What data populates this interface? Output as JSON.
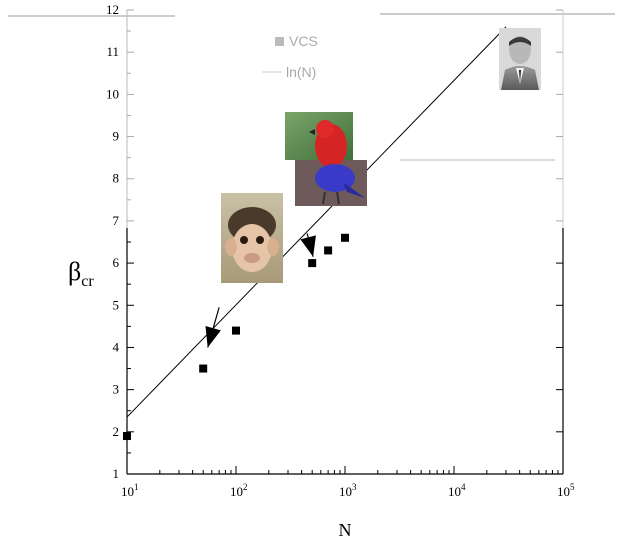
{
  "chart_data": {
    "type": "scatter",
    "xlabel": "N",
    "ylabel": "β",
    "ylabel_subscript": "cr",
    "x_scale": "log",
    "xlim": [
      10,
      100000
    ],
    "ylim": [
      1,
      12
    ],
    "x_ticks": [
      10,
      100,
      1000,
      10000,
      100000
    ],
    "x_tick_labels": [
      {
        "base": "10",
        "exp": "1"
      },
      {
        "base": "10",
        "exp": "2"
      },
      {
        "base": "10",
        "exp": "3"
      },
      {
        "base": "10",
        "exp": "4"
      },
      {
        "base": "10",
        "exp": "5"
      }
    ],
    "y_ticks": [
      1,
      2,
      3,
      4,
      5,
      6,
      7,
      8,
      9,
      10,
      11,
      12
    ],
    "grid": false,
    "legend": {
      "placement": "top-center",
      "entries": [
        "VCS",
        "ln(N)"
      ]
    },
    "series": [
      {
        "name": "VCS",
        "marker": "square",
        "x": [
          10,
          50,
          100,
          500,
          700,
          1000
        ],
        "y": [
          1.9,
          3.5,
          4.4,
          6.0,
          6.3,
          6.6
        ]
      },
      {
        "name": "ln(N)",
        "line": true,
        "x": [
          10,
          30000
        ],
        "y": [
          2.35,
          11.6
        ]
      }
    ],
    "annotations": [
      {
        "type": "arrow",
        "from": [
          70,
          4.95
        ],
        "to": [
          55,
          4.0
        ]
      },
      {
        "type": "arrow",
        "from": [
          450,
          6.7
        ],
        "to": [
          510,
          6.15
        ]
      }
    ],
    "images": [
      {
        "name": "monkey-photo"
      },
      {
        "name": "parrot-photo"
      },
      {
        "name": "portrait-photo"
      }
    ]
  }
}
